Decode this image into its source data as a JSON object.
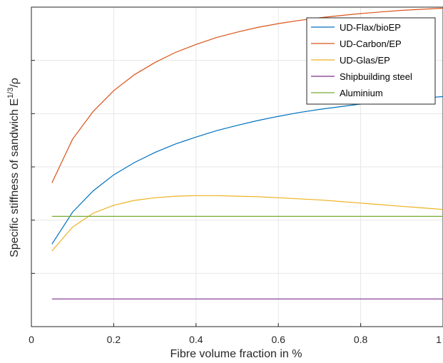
{
  "chart_data": {
    "type": "line",
    "xlabel": "Fibre volume fraction in %",
    "ylabel_main": "Specific stiffness of sandwich E",
    "ylabel_sup": "1/3",
    "ylabel_tail": "/ρ",
    "xlim": [
      0,
      1
    ],
    "ylim": [
      0,
      6
    ],
    "x_ticks": [
      "0",
      "0.2",
      "0.4",
      "0.6",
      "0.8",
      "1"
    ],
    "y_ticks_count": 6,
    "grid": true,
    "legend_position": "top-right",
    "series": [
      {
        "name": "UD-Flax/bioEP",
        "color": "#0072BD",
        "x": [
          0.05,
          0.1,
          0.15,
          0.2,
          0.25,
          0.3,
          0.35,
          0.4,
          0.45,
          0.5,
          0.55,
          0.6,
          0.65,
          0.7,
          0.75,
          0.8,
          0.85,
          0.9,
          0.95,
          1.0
        ],
        "y": [
          1.55,
          2.15,
          2.55,
          2.85,
          3.08,
          3.27,
          3.43,
          3.56,
          3.68,
          3.78,
          3.87,
          3.95,
          4.02,
          4.08,
          4.13,
          4.18,
          4.22,
          4.26,
          4.29,
          4.32
        ]
      },
      {
        "name": "UD-Carbon/EP",
        "color": "#D95319",
        "x": [
          0.05,
          0.1,
          0.15,
          0.2,
          0.25,
          0.3,
          0.35,
          0.4,
          0.45,
          0.5,
          0.55,
          0.6,
          0.65,
          0.7,
          0.75,
          0.8,
          0.85,
          0.9,
          0.95,
          1.0
        ],
        "y": [
          2.7,
          3.52,
          4.04,
          4.43,
          4.73,
          4.96,
          5.15,
          5.3,
          5.43,
          5.53,
          5.62,
          5.69,
          5.75,
          5.8,
          5.84,
          5.88,
          5.91,
          5.94,
          5.96,
          5.98
        ]
      },
      {
        "name": "UD-Glas/EP",
        "color": "#EDB120",
        "x": [
          0.05,
          0.1,
          0.15,
          0.2,
          0.25,
          0.3,
          0.35,
          0.4,
          0.45,
          0.5,
          0.55,
          0.6,
          0.65,
          0.7,
          0.75,
          0.8,
          0.85,
          0.9,
          0.95,
          1.0
        ],
        "y": [
          1.42,
          1.87,
          2.13,
          2.28,
          2.37,
          2.42,
          2.45,
          2.46,
          2.46,
          2.45,
          2.44,
          2.42,
          2.4,
          2.38,
          2.35,
          2.32,
          2.29,
          2.26,
          2.23,
          2.2
        ]
      },
      {
        "name": "Shipbuilding steel",
        "color": "#7E2F8E",
        "x": [
          0.05,
          1.0
        ],
        "y": [
          0.52,
          0.52
        ]
      },
      {
        "name": "Aluminium",
        "color": "#77AC30",
        "x": [
          0.05,
          1.0
        ],
        "y": [
          2.07,
          2.07
        ]
      }
    ]
  }
}
